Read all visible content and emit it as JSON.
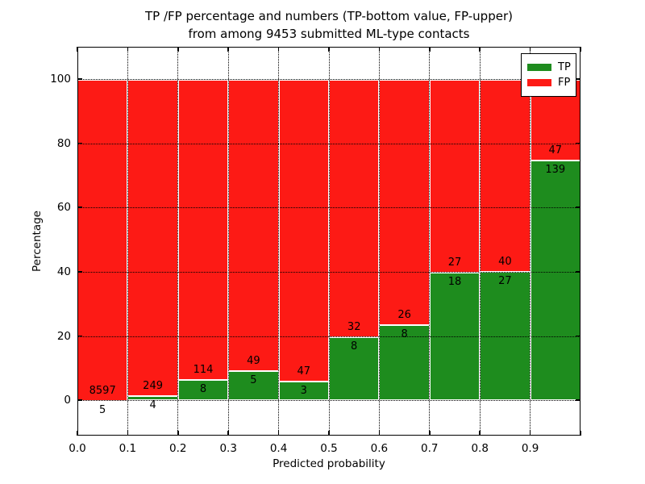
{
  "title": {
    "line1": "TP /FP percentage and numbers (TP-bottom value, FP-upper)",
    "line2": "from among 9453 submitted ML-type contacts"
  },
  "chart_data": {
    "type": "bar",
    "stacked": true,
    "normalized_to_percent": true,
    "title": "TP /FP percentage and numbers (TP-bottom value, FP-upper) from among 9453 submitted ML-type contacts",
    "xlabel": "Predicted probability",
    "ylabel": "Percentage",
    "total_contacts": 9453,
    "categories": [
      "0.0-0.1",
      "0.1-0.2",
      "0.2-0.3",
      "0.3-0.4",
      "0.4-0.5",
      "0.5-0.6",
      "0.6-0.7",
      "0.7-0.8",
      "0.8-0.9",
      "0.9-1.0"
    ],
    "x_tick_labels": [
      "0.0",
      "0.1",
      "0.2",
      "0.3",
      "0.4",
      "0.5",
      "0.6",
      "0.7",
      "0.8",
      "0.9"
    ],
    "y_ticks": [
      0,
      20,
      40,
      60,
      80,
      100
    ],
    "xlim": [
      0.0,
      1.0
    ],
    "ylim": [
      -11,
      110
    ],
    "grid": "dotted, drawn over bars",
    "bar_edge_color": "#ffffff",
    "series": [
      {
        "name": "TP",
        "color": "#1e8c1e",
        "position": "bottom",
        "counts": [
          5,
          4,
          8,
          5,
          3,
          8,
          8,
          18,
          27,
          139
        ]
      },
      {
        "name": "FP",
        "color": "#fd1a15",
        "position": "top",
        "counts": [
          8597,
          249,
          114,
          49,
          47,
          32,
          26,
          27,
          40,
          47
        ]
      }
    ],
    "tp_percent_of_bin": [
      0.06,
      1.58,
      6.56,
      9.26,
      6.0,
      20.0,
      23.53,
      40.0,
      40.3,
      74.73
    ],
    "legend": {
      "position": "upper right",
      "entries": [
        {
          "label": "TP",
          "color": "#1e8c1e"
        },
        {
          "label": "FP",
          "color": "#fd1a15"
        }
      ]
    }
  }
}
